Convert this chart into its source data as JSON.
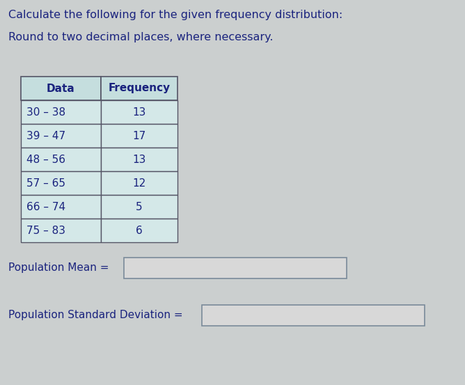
{
  "title_line1": "Calculate the following for the given frequency distribution:",
  "title_line2": "Round to two decimal places, where necessary.",
  "table_headers": [
    "Data",
    "Frequency"
  ],
  "table_rows": [
    [
      "30 – 38",
      "13"
    ],
    [
      "39 – 47",
      "17"
    ],
    [
      "48 – 56",
      "13"
    ],
    [
      "57 – 65",
      "12"
    ],
    [
      "66 – 74",
      "5"
    ],
    [
      "75 – 83",
      "6"
    ]
  ],
  "label_mean": "Population Mean =",
  "label_std": "Population Standard Deviation =",
  "bg_color": "#cbcfcf",
  "header_bg": "#c5dede",
  "cell_bg": "#d4e8e8",
  "table_border": "#555566",
  "text_color": "#1a237e",
  "input_box_color": "#d8d8d8",
  "input_box_border": "#7a8a9a",
  "font_size_title": 11.5,
  "font_size_table": 11,
  "font_size_labels": 11
}
